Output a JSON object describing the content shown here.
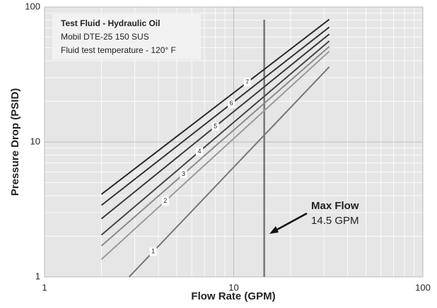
{
  "chart_data": {
    "type": "line",
    "x_label": "Flow Rate (GPM)",
    "y_label": "Pressure Drop (PSID)",
    "x_log": true,
    "y_log": true,
    "xlim": [
      1,
      100
    ],
    "ylim": [
      1,
      100
    ],
    "xticks": [
      1,
      10,
      100
    ],
    "yticks": [
      1,
      10,
      100
    ],
    "grid": true,
    "minor_grid": true,
    "info_box": [
      "Test Fluid - Hydraulic Oil",
      "Mobil DTE-25 150 SUS",
      "Fluid test temperature - 120° F"
    ],
    "max_flow": {
      "value": 14.5,
      "label": "Max Flow",
      "value_label": "14.5 GPM"
    },
    "series": [
      {
        "name": "1",
        "color": "#777777",
        "x": [
          2.8,
          32
        ],
        "values": [
          1,
          36
        ]
      },
      {
        "name": "2",
        "color": "#9a9a9a",
        "x": [
          2,
          32
        ],
        "values": [
          1.35,
          47
        ]
      },
      {
        "name": "3",
        "color": "#8a8a8a",
        "x": [
          2,
          32
        ],
        "values": [
          1.7,
          51
        ]
      },
      {
        "name": "4",
        "color": "#444444",
        "x": [
          2,
          32
        ],
        "values": [
          2.05,
          56
        ]
      },
      {
        "name": "5",
        "color": "#3a3a3a",
        "x": [
          2,
          32
        ],
        "values": [
          2.7,
          63
        ]
      },
      {
        "name": "6",
        "color": "#333333",
        "x": [
          2,
          32
        ],
        "values": [
          3.4,
          71
        ]
      },
      {
        "name": "7",
        "color": "#2a2a2a",
        "x": [
          2,
          32
        ],
        "values": [
          4.1,
          81
        ]
      }
    ]
  }
}
